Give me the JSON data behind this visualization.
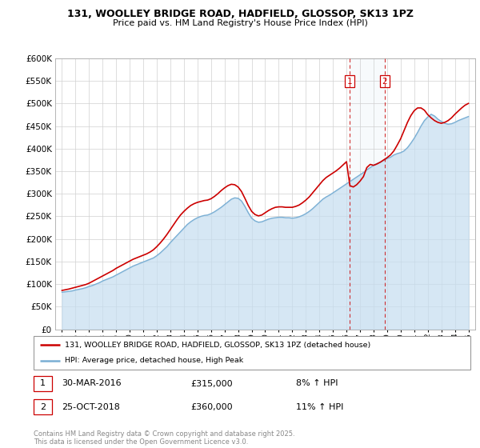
{
  "title": "131, WOOLLEY BRIDGE ROAD, HADFIELD, GLOSSOP, SK13 1PZ",
  "subtitle": "Price paid vs. HM Land Registry's House Price Index (HPI)",
  "legend_line1": "131, WOOLLEY BRIDGE ROAD, HADFIELD, GLOSSOP, SK13 1PZ (detached house)",
  "legend_line2": "HPI: Average price, detached house, High Peak",
  "red_color": "#cc0000",
  "blue_color": "#7aafd4",
  "blue_fill_color": "#c5ddf0",
  "marker1_date": "30-MAR-2016",
  "marker1_price": "£315,000",
  "marker1_hpi": "8% ↑ HPI",
  "marker1_year": 2016.25,
  "marker2_date": "25-OCT-2018",
  "marker2_price": "£360,000",
  "marker2_hpi": "11% ↑ HPI",
  "marker2_year": 2018.83,
  "footer": "Contains HM Land Registry data © Crown copyright and database right 2025.\nThis data is licensed under the Open Government Licence v3.0.",
  "ylim": [
    0,
    600000
  ],
  "xlim": [
    1994.5,
    2025.5
  ],
  "years_hpi": [
    1995,
    1995.25,
    1995.5,
    1995.75,
    1996,
    1996.25,
    1996.5,
    1996.75,
    1997,
    1997.25,
    1997.5,
    1997.75,
    1998,
    1998.25,
    1998.5,
    1998.75,
    1999,
    1999.25,
    1999.5,
    1999.75,
    2000,
    2000.25,
    2000.5,
    2000.75,
    2001,
    2001.25,
    2001.5,
    2001.75,
    2002,
    2002.25,
    2002.5,
    2002.75,
    2003,
    2003.25,
    2003.5,
    2003.75,
    2004,
    2004.25,
    2004.5,
    2004.75,
    2005,
    2005.25,
    2005.5,
    2005.75,
    2006,
    2006.25,
    2006.5,
    2006.75,
    2007,
    2007.25,
    2007.5,
    2007.75,
    2008,
    2008.25,
    2008.5,
    2008.75,
    2009,
    2009.25,
    2009.5,
    2009.75,
    2010,
    2010.25,
    2010.5,
    2010.75,
    2011,
    2011.25,
    2011.5,
    2011.75,
    2012,
    2012.25,
    2012.5,
    2012.75,
    2013,
    2013.25,
    2013.5,
    2013.75,
    2014,
    2014.25,
    2014.5,
    2014.75,
    2015,
    2015.25,
    2015.5,
    2015.75,
    2016,
    2016.25,
    2016.5,
    2016.75,
    2017,
    2017.25,
    2017.5,
    2017.75,
    2018,
    2018.25,
    2018.5,
    2018.75,
    2019,
    2019.25,
    2019.5,
    2019.75,
    2020,
    2020.25,
    2020.5,
    2020.75,
    2021,
    2021.25,
    2021.5,
    2021.75,
    2022,
    2022.25,
    2022.5,
    2022.75,
    2023,
    2023.25,
    2023.5,
    2023.75,
    2024,
    2024.25,
    2024.5,
    2024.75,
    2025
  ],
  "values_hpi": [
    82000,
    83000,
    84000,
    85000,
    87000,
    88500,
    90000,
    92000,
    95000,
    97000,
    100000,
    103000,
    107000,
    110000,
    113000,
    116000,
    120000,
    124000,
    128000,
    132000,
    136000,
    140000,
    143000,
    146000,
    149000,
    152000,
    155000,
    158000,
    163000,
    169000,
    176000,
    183000,
    192000,
    200000,
    208000,
    216000,
    224000,
    232000,
    238000,
    243000,
    247000,
    250000,
    252000,
    253000,
    256000,
    260000,
    265000,
    270000,
    276000,
    282000,
    288000,
    291000,
    290000,
    284000,
    272000,
    258000,
    246000,
    240000,
    237000,
    238000,
    241000,
    244000,
    246000,
    247000,
    248000,
    248000,
    247000,
    247000,
    246000,
    247000,
    249000,
    252000,
    256000,
    261000,
    267000,
    274000,
    281000,
    288000,
    293000,
    297000,
    302000,
    307000,
    312000,
    317000,
    322000,
    327000,
    332000,
    337000,
    342000,
    347000,
    353000,
    358000,
    363000,
    367000,
    370000,
    374000,
    378000,
    381000,
    386000,
    389000,
    391000,
    395000,
    402000,
    412000,
    423000,
    436000,
    450000,
    462000,
    470000,
    476000,
    472000,
    465000,
    460000,
    456000,
    454000,
    455000,
    458000,
    462000,
    465000,
    468000,
    471000
  ],
  "years_red": [
    1995,
    1995.25,
    1995.5,
    1995.75,
    1996,
    1996.25,
    1996.5,
    1996.75,
    1997,
    1997.25,
    1997.5,
    1997.75,
    1998,
    1998.25,
    1998.5,
    1998.75,
    1999,
    1999.25,
    1999.5,
    1999.75,
    2000,
    2000.25,
    2000.5,
    2000.75,
    2001,
    2001.25,
    2001.5,
    2001.75,
    2002,
    2002.25,
    2002.5,
    2002.75,
    2003,
    2003.25,
    2003.5,
    2003.75,
    2004,
    2004.25,
    2004.5,
    2004.75,
    2005,
    2005.25,
    2005.5,
    2005.75,
    2006,
    2006.25,
    2006.5,
    2006.75,
    2007,
    2007.25,
    2007.5,
    2007.75,
    2008,
    2008.25,
    2008.5,
    2008.75,
    2009,
    2009.25,
    2009.5,
    2009.75,
    2010,
    2010.25,
    2010.5,
    2010.75,
    2011,
    2011.25,
    2011.5,
    2011.75,
    2012,
    2012.25,
    2012.5,
    2012.75,
    2013,
    2013.25,
    2013.5,
    2013.75,
    2014,
    2014.25,
    2014.5,
    2014.75,
    2015,
    2015.25,
    2015.5,
    2015.75,
    2016,
    2016.25,
    2016.5,
    2016.75,
    2017,
    2017.25,
    2017.5,
    2017.75,
    2018,
    2018.25,
    2018.5,
    2018.75,
    2019,
    2019.25,
    2019.5,
    2019.75,
    2020,
    2020.25,
    2020.5,
    2020.75,
    2021,
    2021.25,
    2021.5,
    2021.75,
    2022,
    2022.25,
    2022.5,
    2022.75,
    2023,
    2023.25,
    2023.5,
    2023.75,
    2024,
    2024.25,
    2024.5,
    2024.75,
    2025
  ],
  "values_red": [
    86000,
    87500,
    89000,
    91000,
    93000,
    95000,
    97000,
    99000,
    102000,
    106000,
    110000,
    114000,
    118000,
    122000,
    126000,
    130000,
    135000,
    139000,
    143000,
    147000,
    151000,
    155000,
    158000,
    161000,
    164000,
    167000,
    171000,
    176000,
    183000,
    191000,
    200000,
    210000,
    221000,
    232000,
    243000,
    253000,
    261000,
    268000,
    274000,
    278000,
    281000,
    283000,
    285000,
    286000,
    289000,
    294000,
    300000,
    307000,
    313000,
    318000,
    321000,
    320000,
    315000,
    305000,
    290000,
    274000,
    261000,
    254000,
    251000,
    253000,
    258000,
    263000,
    267000,
    270000,
    271000,
    271000,
    270000,
    270000,
    270000,
    272000,
    275000,
    280000,
    286000,
    293000,
    302000,
    311000,
    320000,
    329000,
    336000,
    341000,
    346000,
    351000,
    357000,
    364000,
    371000,
    318000,
    315000,
    320000,
    328000,
    338000,
    358000,
    365000,
    363000,
    366000,
    370000,
    375000,
    380000,
    386000,
    395000,
    408000,
    422000,
    440000,
    458000,
    473000,
    484000,
    490000,
    490000,
    485000,
    475000,
    468000,
    462000,
    458000,
    456000,
    458000,
    462000,
    468000,
    476000,
    483000,
    490000,
    496000,
    500000
  ]
}
